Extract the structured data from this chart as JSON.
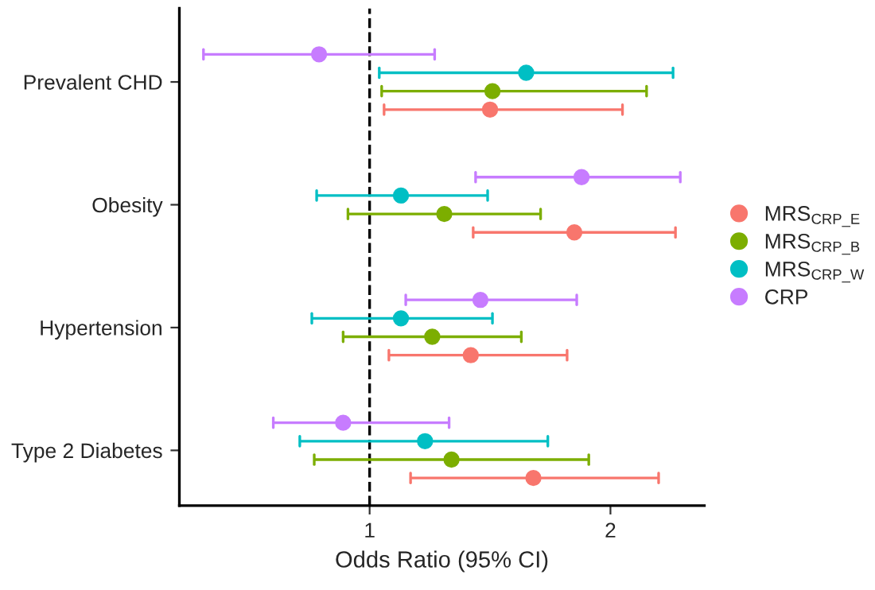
{
  "chart_data": {
    "type": "scatter",
    "orientation": "horizontal",
    "xlabel": "Odds Ratio (95% CI)",
    "categories": [
      "Prevalent CHD",
      "Obesity",
      "Hypertension",
      "Type 2 Diabetes"
    ],
    "series": [
      {
        "name": "MRS$_{CRP_E}$",
        "color": "#f8766d",
        "values": [
          1.5,
          1.85,
          1.42,
          1.68
        ],
        "errors": [
          [
            1.06,
            2.05
          ],
          [
            1.43,
            2.27
          ],
          [
            1.08,
            1.82
          ],
          [
            1.17,
            2.2
          ]
        ]
      },
      {
        "name": "MRS$_{CRP_B}$",
        "color": "#7cae00",
        "values": [
          1.51,
          1.31,
          1.26,
          1.34
        ],
        "errors": [
          [
            1.05,
            2.15
          ],
          [
            0.91,
            1.71
          ],
          [
            0.89,
            1.63
          ],
          [
            0.77,
            1.91
          ]
        ]
      },
      {
        "name": "MRS$_{CRP_W}$",
        "color": "#00bfc4",
        "values": [
          1.65,
          1.13,
          1.13,
          1.23
        ],
        "errors": [
          [
            1.04,
            2.26
          ],
          [
            0.78,
            1.49
          ],
          [
            0.76,
            1.51
          ],
          [
            0.71,
            1.74
          ]
        ]
      },
      {
        "name": "CRP",
        "color": "#c77cff",
        "values": [
          0.79,
          1.88,
          1.46,
          0.89
        ],
        "errors": [
          [
            0.31,
            1.27
          ],
          [
            1.44,
            2.29
          ],
          [
            1.15,
            1.86
          ],
          [
            0.6,
            1.33
          ]
        ]
      }
    ],
    "xlim": [
      0.21,
      2.39
    ],
    "xticks": [
      1,
      2
    ],
    "ref_lines": [
      {
        "axis": "x",
        "value": 1,
        "line_style": "dashed",
        "color": "#000000"
      }
    ],
    "grid": false,
    "legend": "right",
    "marker": "circle"
  }
}
